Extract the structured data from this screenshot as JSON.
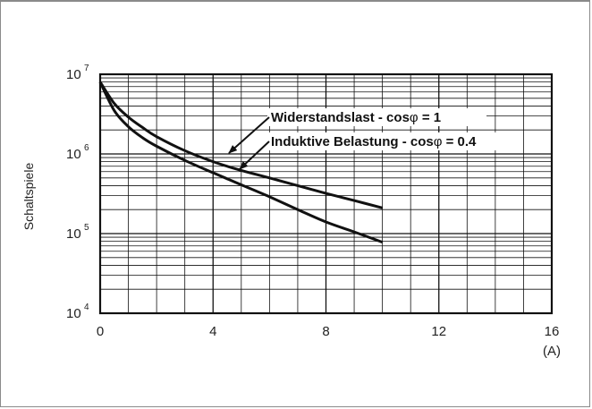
{
  "chart_data": {
    "type": "line",
    "title": "",
    "xlabel": "",
    "x_unit": "(A)",
    "ylabel": "Schaltspiele",
    "x_ticks": [
      0,
      4,
      8,
      12,
      16
    ],
    "x_tick_labels": [
      "0",
      "4",
      "8",
      "12",
      "16"
    ],
    "y_tick_labels": [
      {
        "base": "10",
        "exp": "7"
      },
      {
        "base": "10",
        "exp": "6"
      },
      {
        "base": "10",
        "exp": "5"
      },
      {
        "base": "10",
        "exp": "4"
      }
    ],
    "xlim": [
      0,
      16
    ],
    "ylim": [
      10000,
      10000000
    ],
    "y_scale": "log",
    "grid": true,
    "series": [
      {
        "name": "Widerstandslast - cosφ = 1",
        "x": [
          0,
          0.5,
          1,
          1.5,
          2,
          3,
          4,
          5,
          6,
          7,
          8,
          9,
          10
        ],
        "y": [
          8000000,
          4300000,
          2900000,
          2150000,
          1650000,
          1100000,
          800000,
          620000,
          500000,
          400000,
          320000,
          260000,
          210000
        ]
      },
      {
        "name": "Inductive Belastung - cosφ = 0.4",
        "x": [
          0,
          0.5,
          1,
          1.5,
          2,
          3,
          4,
          5,
          6,
          7,
          8,
          9,
          10
        ],
        "y": [
          8000000,
          3500000,
          2200000,
          1600000,
          1250000,
          830000,
          580000,
          410000,
          290000,
          200000,
          140000,
          105000,
          78000
        ]
      }
    ],
    "annotations": [
      {
        "text": "Widerstandslast - cos",
        "symbol": "φ",
        "suffix": " = 1",
        "target_x": 4.5,
        "target_series": 0
      },
      {
        "text": "Induktive Belastung - cos",
        "symbol": "φ",
        "suffix": " = 0.4",
        "target_x": 4.9,
        "target_series": 0
      }
    ]
  }
}
